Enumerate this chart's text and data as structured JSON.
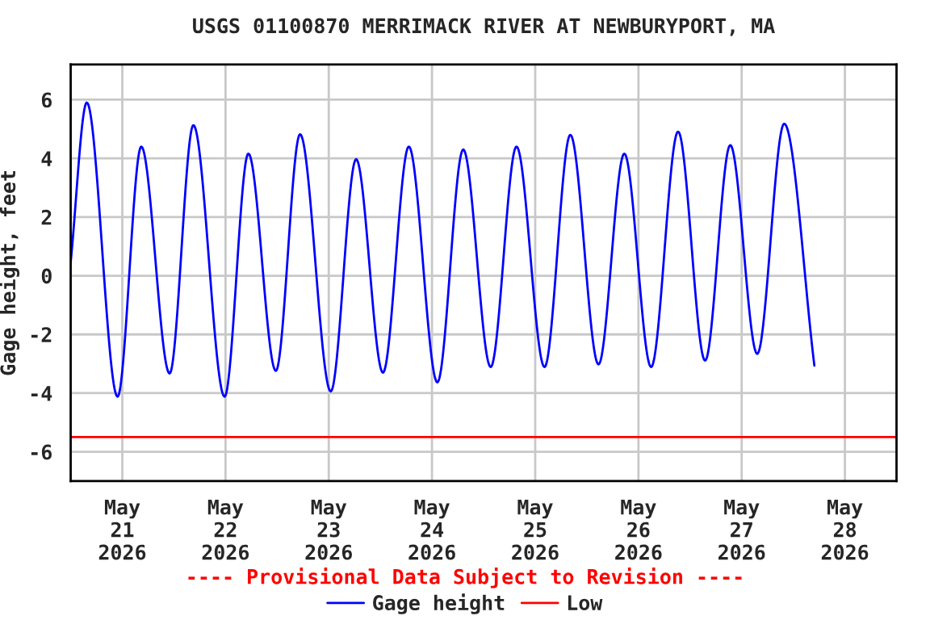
{
  "chart_data": {
    "type": "line",
    "title": "USGS 01100870 MERRIMACK RIVER AT NEWBURYPORT, MA",
    "ylabel": "Gage height, feet",
    "annotations": [
      "---- Provisional Data Subject to Revision ----"
    ],
    "x": [
      "2026-05-20T12:00",
      "2026-05-20T15:45",
      "2026-05-20T22:54",
      "2026-05-21T04:25",
      "2026-05-21T11:00",
      "2026-05-21T16:32",
      "2026-05-21T23:47",
      "2026-05-22T05:19",
      "2026-05-22T11:42",
      "2026-05-22T17:20",
      "2026-05-23T00:28",
      "2026-05-23T06:22",
      "2026-05-23T12:36",
      "2026-05-23T18:37",
      "2026-05-24T01:15",
      "2026-05-24T07:16",
      "2026-05-24T13:39",
      "2026-05-24T19:39",
      "2026-05-25T02:10",
      "2026-05-25T08:10",
      "2026-05-25T14:43",
      "2026-05-25T20:43",
      "2026-05-26T02:57",
      "2026-05-26T09:13",
      "2026-05-26T15:30",
      "2026-05-26T21:21",
      "2026-05-27T03:37",
      "2026-05-27T09:53",
      "2026-05-27T16:54"
    ],
    "series": [
      {
        "name": "Gage height",
        "color": "#0000ff",
        "values": [
          0.46,
          5.9,
          -4.12,
          4.4,
          -3.33,
          5.13,
          -4.12,
          4.16,
          -3.24,
          4.82,
          -3.94,
          3.97,
          -3.3,
          4.4,
          -3.63,
          4.3,
          -3.11,
          4.4,
          -3.11,
          4.8,
          -3.02,
          4.16,
          -3.11,
          4.91,
          -2.89,
          4.45,
          -2.66,
          5.18,
          -3.06
        ]
      }
    ],
    "ref_lines": [
      {
        "axis": "y",
        "value": -5.5,
        "label": "Low",
        "color": "#ff0000"
      }
    ],
    "xlim": [
      "2026-05-20T12:00",
      "2026-05-28T12:00"
    ],
    "xticks": [
      {
        "value": "2026-05-21",
        "label": "May\n21\n2026"
      },
      {
        "value": "2026-05-22",
        "label": "May\n22\n2026"
      },
      {
        "value": "2026-05-23",
        "label": "May\n23\n2026"
      },
      {
        "value": "2026-05-24",
        "label": "May\n24\n2026"
      },
      {
        "value": "2026-05-25",
        "label": "May\n25\n2026"
      },
      {
        "value": "2026-05-26",
        "label": "May\n26\n2026"
      },
      {
        "value": "2026-05-27",
        "label": "May\n27\n2026"
      },
      {
        "value": "2026-05-28",
        "label": "May\n28\n2026"
      }
    ],
    "ylim": [
      -7.0,
      7.2
    ],
    "yticks": [
      -6,
      -4,
      -2,
      0,
      2,
      4,
      6
    ],
    "grid": true,
    "legend": "bottom",
    "marker": "none",
    "line_style": "solid"
  }
}
